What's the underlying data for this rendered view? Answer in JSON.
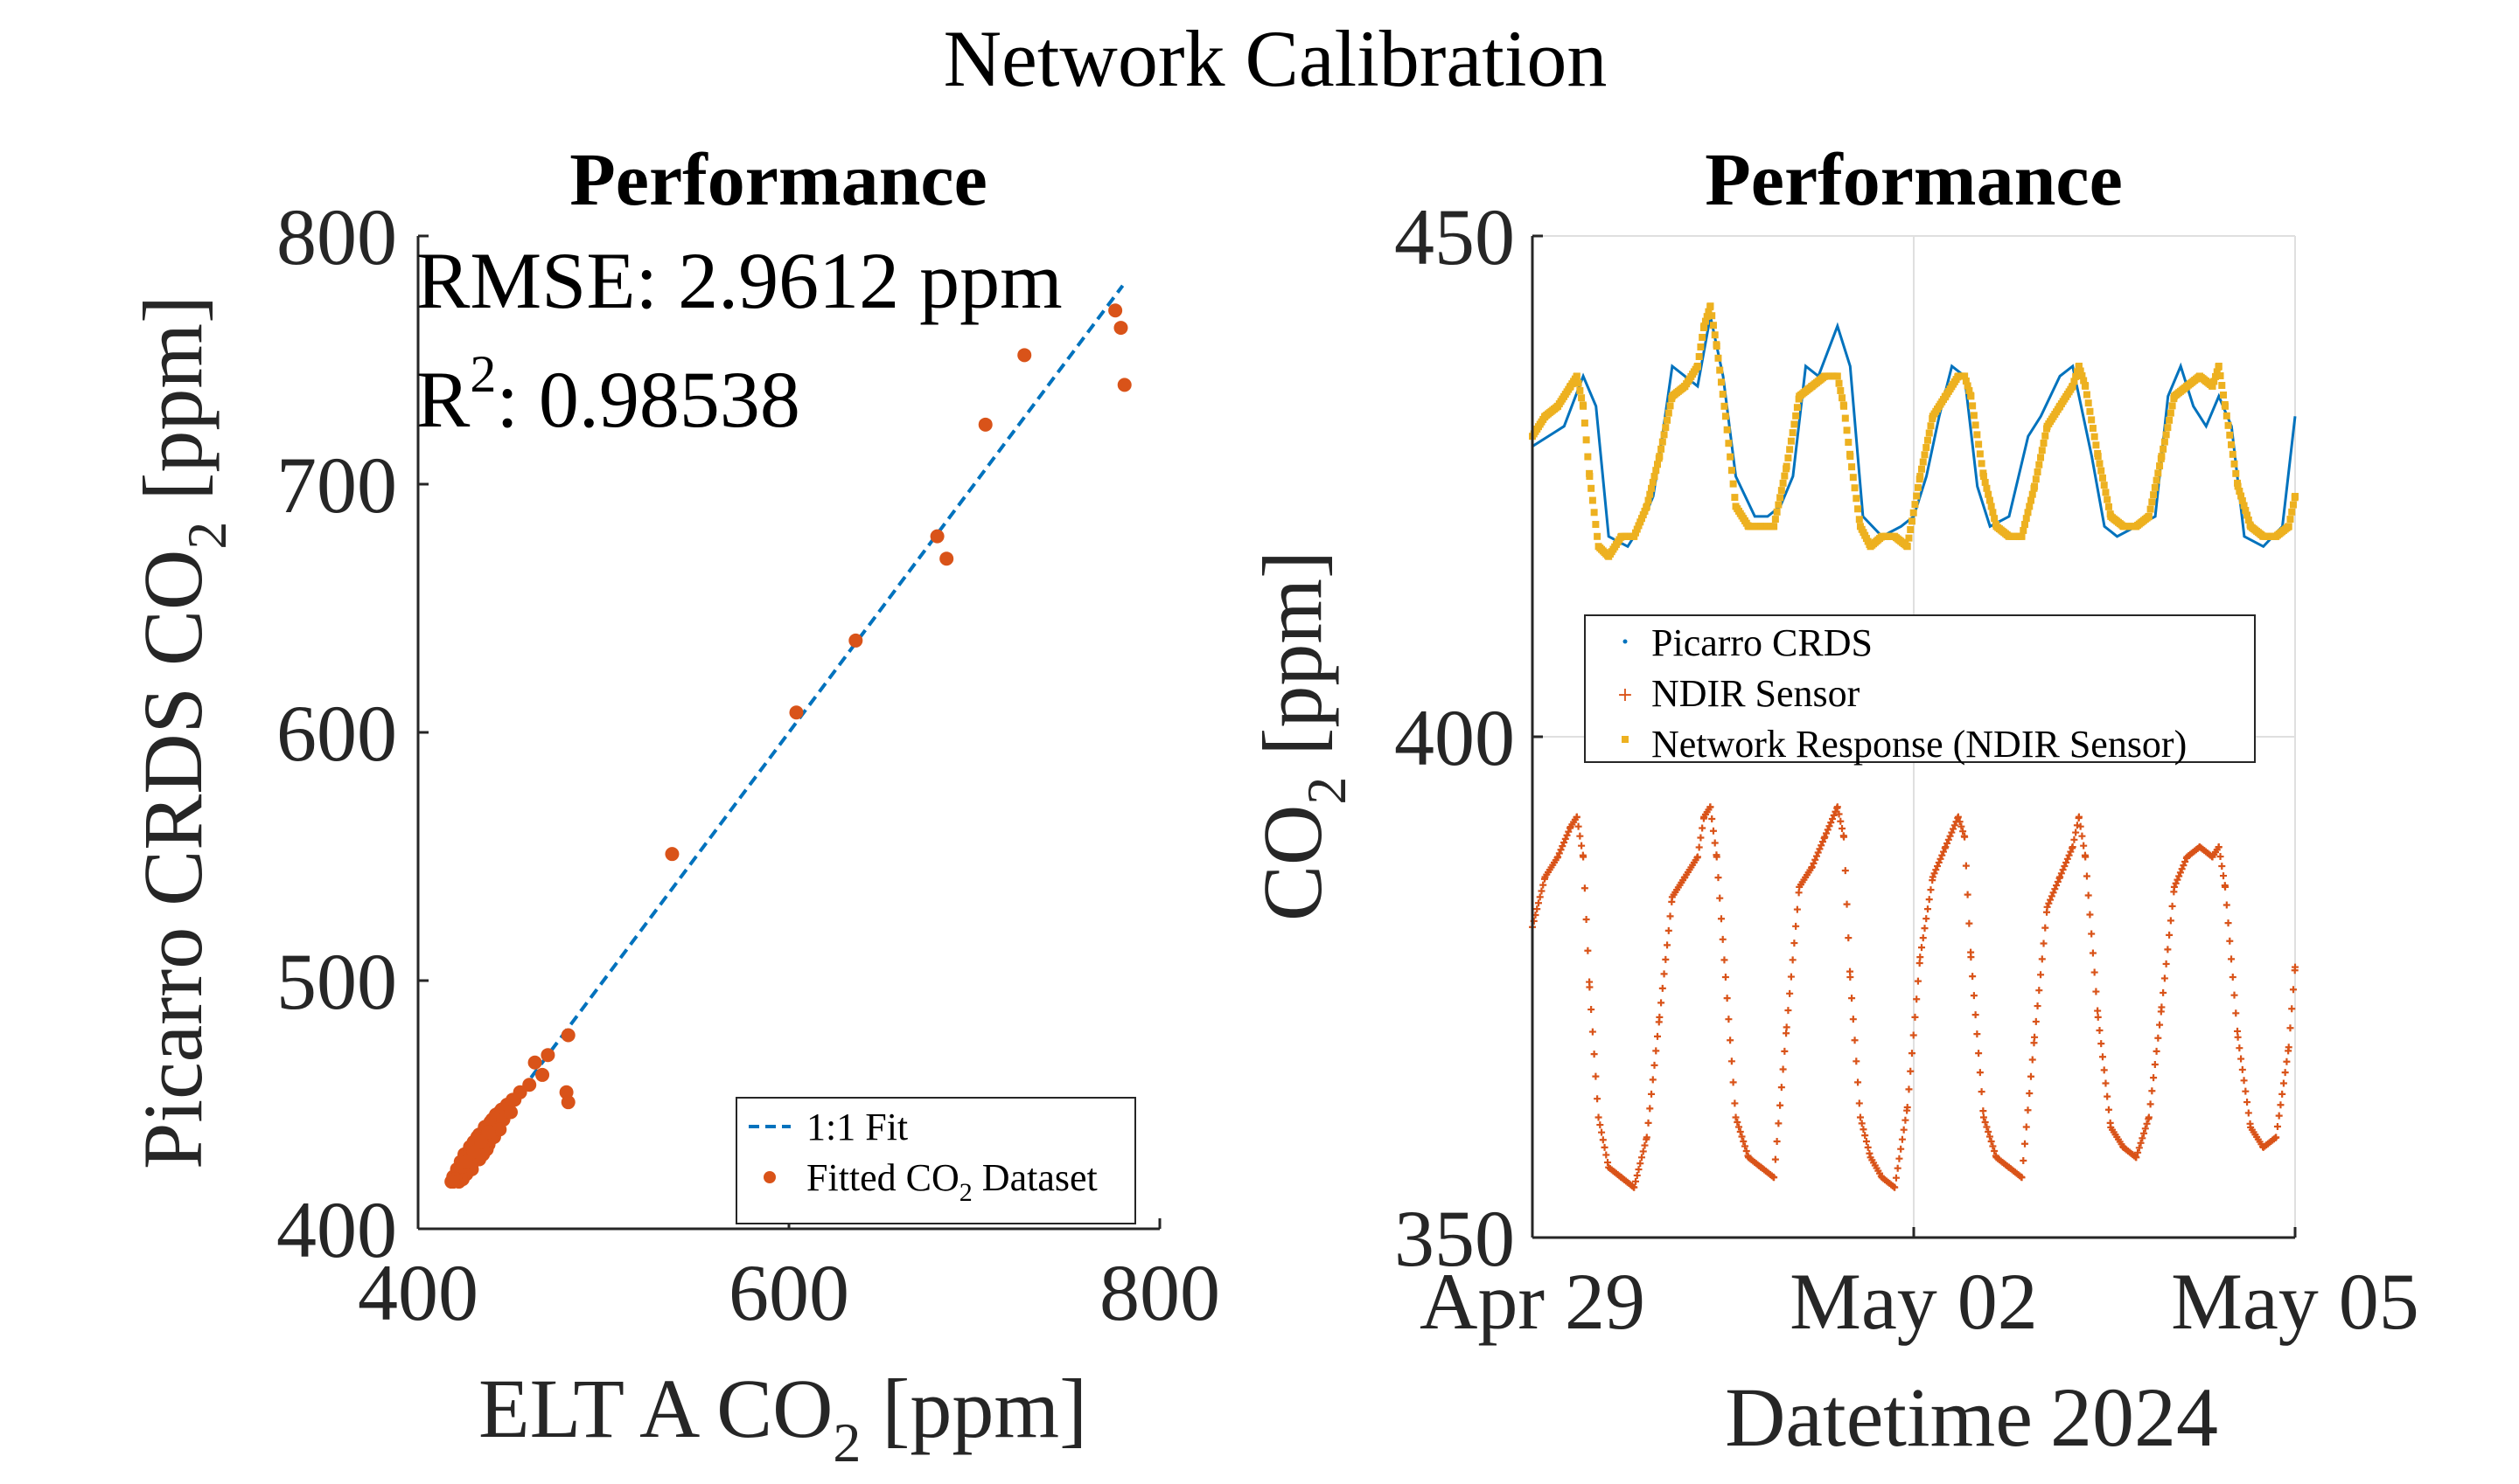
{
  "suptitle": "Network Calibration",
  "colors": {
    "picarro": "#0072BD",
    "ndir": "#D95319",
    "network": "#EDB120",
    "fit": "#0072BD",
    "axis": "#262626",
    "grid": "#dfdfdf"
  },
  "chart_data": [
    {
      "type": "scatter",
      "title": "Performance",
      "xlabel": {
        "text": "ELT A CO",
        "sub": "2",
        "unit": " [ppm]"
      },
      "ylabel": {
        "text": "Picarro CRDS CO",
        "sub": "2",
        "unit": " [ppm]"
      },
      "xlim": [
        400,
        800
      ],
      "ylim": [
        400,
        800
      ],
      "xticks": [
        400,
        600,
        800
      ],
      "yticks": [
        400,
        500,
        600,
        700,
        800
      ],
      "grid": false,
      "stats": {
        "rmse_label": "RMSE: 2.9612 ppm",
        "r2_prefix": "R",
        "r2_sup": "2",
        "r2_value": ": 0.98538"
      },
      "legend": {
        "position": "bottom-right",
        "fit_label": "1:1 Fit",
        "data_label": {
          "text": "Fitted CO",
          "sub": "2",
          "unit": " Dataset"
        }
      },
      "fit_line": {
        "x": [
          418,
          780
        ],
        "y": [
          418,
          780
        ]
      },
      "series": [
        {
          "name": "Fitted CO2 Dataset",
          "x": [
            776,
            779,
            781,
            727,
            706,
            685,
            680,
            636,
            604,
            537,
            481,
            480,
            481,
            463,
            467,
            470,
            460,
            455,
            452,
            448,
            444,
            440,
            436,
            432,
            428,
            425,
            423,
            421,
            419,
            418,
            420,
            422,
            424,
            426,
            428,
            430,
            433,
            436,
            439,
            442,
            445,
            448,
            451,
            435,
            430,
            427,
            425,
            429,
            432,
            438,
            441,
            437,
            433,
            429,
            426,
            424,
            422,
            421,
            423,
            427,
            431,
            434,
            440,
            446,
            450,
            444,
            439,
            435,
            431,
            428,
            425,
            423,
            420,
            419,
            424,
            426,
            430,
            434,
            438
          ],
          "y": [
            770,
            763,
            740,
            752,
            724,
            670,
            679,
            637,
            608,
            551,
            478,
            455,
            451,
            467,
            462,
            470,
            458,
            455,
            452,
            449,
            447,
            444,
            440,
            437,
            433,
            430,
            427,
            424,
            421,
            419,
            421,
            423,
            426,
            429,
            432,
            435,
            438,
            441,
            443,
            446,
            448,
            450,
            452,
            430,
            428,
            425,
            422,
            426,
            429,
            434,
            437,
            432,
            428,
            424,
            422,
            420,
            419,
            421,
            424,
            427,
            430,
            433,
            438,
            444,
            447,
            440,
            436,
            432,
            429,
            426,
            423,
            421,
            420,
            419,
            425,
            427,
            431,
            435,
            439
          ]
        }
      ]
    },
    {
      "type": "line",
      "title": "Performance",
      "xlabel": "Datetime",
      "x_year_label": "2024",
      "ylabel": {
        "text": "CO",
        "sub": "2",
        "unit": " [ppm]"
      },
      "xlim": [
        0,
        6
      ],
      "ylim": [
        350,
        450
      ],
      "xticks": [
        0,
        3,
        6
      ],
      "xtick_labels": [
        "Apr 29",
        "May 02",
        "May 05"
      ],
      "yticks": [
        350,
        400,
        450
      ],
      "grid": true,
      "legend": {
        "position": "center",
        "entries": [
          "Picarro CRDS",
          "NDIR Sensor",
          "Network Response (NDIR Sensor)"
        ]
      },
      "series": [
        {
          "name": "Picarro CRDS",
          "x": [
            0.0,
            0.25,
            0.4,
            0.5,
            0.6,
            0.75,
            0.85,
            0.95,
            1.0,
            1.1,
            1.2,
            1.3,
            1.4,
            1.5,
            1.6,
            1.75,
            1.85,
            1.95,
            2.05,
            2.15,
            2.25,
            2.4,
            2.5,
            2.6,
            2.75,
            2.9,
            3.0,
            3.1,
            3.2,
            3.3,
            3.4,
            3.5,
            3.6,
            3.75,
            3.9,
            4.0,
            4.15,
            4.25,
            4.4,
            4.5,
            4.6,
            4.75,
            4.9,
            5.0,
            5.1,
            5.2,
            5.3,
            5.4,
            5.5,
            5.6,
            5.75,
            5.9,
            6.0
          ],
          "y": [
            429,
            431,
            436,
            433,
            420,
            419,
            421,
            424,
            428,
            437,
            436,
            435,
            442,
            436,
            426,
            422,
            422,
            423,
            426,
            437,
            436,
            441,
            437,
            422,
            420,
            421,
            422,
            426,
            432,
            437,
            436,
            425,
            421,
            422,
            430,
            432,
            436,
            437,
            428,
            421,
            420,
            421,
            422,
            434,
            437,
            433,
            431,
            434,
            431,
            420,
            419,
            421,
            432
          ]
        },
        {
          "name": "NDIR Sensor",
          "x": [
            0.0,
            0.1,
            0.2,
            0.3,
            0.35,
            0.4,
            0.45,
            0.52,
            0.6,
            0.7,
            0.8,
            0.9,
            1.0,
            1.1,
            1.2,
            1.3,
            1.35,
            1.4,
            1.45,
            1.52,
            1.6,
            1.7,
            1.8,
            1.9,
            2.0,
            2.1,
            2.2,
            2.3,
            2.4,
            2.45,
            2.5,
            2.58,
            2.66,
            2.75,
            2.85,
            2.95,
            3.05,
            3.15,
            3.25,
            3.35,
            3.4,
            3.45,
            3.55,
            3.65,
            3.75,
            3.85,
            3.95,
            4.05,
            4.15,
            4.25,
            4.3,
            4.35,
            4.45,
            4.55,
            4.65,
            4.75,
            4.85,
            4.95,
            5.05,
            5.15,
            5.25,
            5.35,
            5.4,
            5.45,
            5.55,
            5.65,
            5.75,
            5.85,
            5.95,
            6.0
          ],
          "y": [
            381,
            386,
            388,
            391,
            392,
            388,
            375,
            362,
            357,
            356,
            355,
            360,
            372,
            384,
            386,
            388,
            392,
            393,
            388,
            376,
            362,
            358,
            357,
            356,
            371,
            385,
            387,
            390,
            393,
            390,
            376,
            362,
            358,
            356,
            355,
            363,
            378,
            386,
            389,
            392,
            390,
            378,
            362,
            358,
            357,
            356,
            370,
            383,
            386,
            389,
            392,
            388,
            372,
            361,
            359,
            358,
            362,
            373,
            385,
            388,
            389,
            388,
            389,
            385,
            370,
            361,
            359,
            360,
            369,
            377
          ]
        },
        {
          "name": "Network Response (NDIR Sensor)",
          "x": [
            0.0,
            0.1,
            0.2,
            0.3,
            0.35,
            0.4,
            0.45,
            0.52,
            0.6,
            0.7,
            0.8,
            0.9,
            1.0,
            1.1,
            1.2,
            1.3,
            1.35,
            1.4,
            1.45,
            1.52,
            1.6,
            1.7,
            1.8,
            1.9,
            2.0,
            2.1,
            2.2,
            2.3,
            2.4,
            2.45,
            2.5,
            2.58,
            2.66,
            2.75,
            2.85,
            2.95,
            3.05,
            3.15,
            3.25,
            3.35,
            3.4,
            3.45,
            3.55,
            3.65,
            3.75,
            3.85,
            3.95,
            4.05,
            4.15,
            4.25,
            4.3,
            4.35,
            4.45,
            4.55,
            4.65,
            4.75,
            4.85,
            4.95,
            5.05,
            5.15,
            5.25,
            5.35,
            5.4,
            5.45,
            5.55,
            5.65,
            5.75,
            5.85,
            5.95,
            6.0
          ],
          "y": [
            430,
            432,
            433,
            435,
            436,
            433,
            426,
            419,
            418,
            420,
            420,
            423,
            428,
            434,
            435,
            437,
            441,
            443,
            439,
            432,
            423,
            421,
            421,
            421,
            427,
            434,
            435,
            436,
            436,
            433,
            428,
            421,
            419,
            420,
            420,
            419,
            426,
            432,
            434,
            436,
            436,
            434,
            426,
            421,
            420,
            420,
            425,
            431,
            433,
            435,
            437,
            435,
            428,
            422,
            421,
            421,
            422,
            428,
            434,
            435,
            436,
            435,
            437,
            433,
            425,
            421,
            420,
            420,
            421,
            424
          ]
        }
      ]
    }
  ]
}
